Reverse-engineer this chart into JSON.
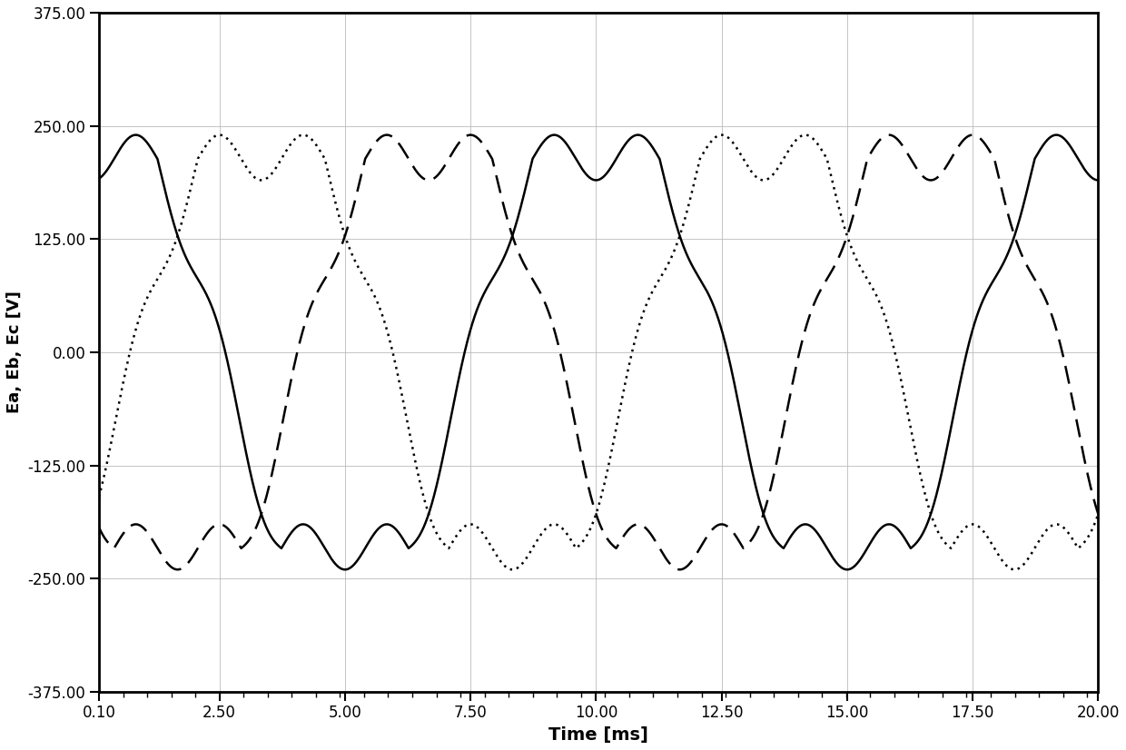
{
  "title": "",
  "xlabel": "Time [ms]",
  "ylabel": "Ea, Eb, Ec [V]",
  "xlim": [
    0.1,
    20.0
  ],
  "ylim": [
    -375.0,
    375.0
  ],
  "xticks": [
    0.1,
    2.5,
    5.0,
    7.5,
    10.0,
    12.5,
    15.0,
    17.5,
    20.0
  ],
  "yticks": [
    -375.0,
    -250.0,
    -125.0,
    0.0,
    125.0,
    250.0,
    375.0
  ],
  "grid_color": "#bbbbbb",
  "line_color": "#000000",
  "background_color": "#ffffff",
  "Vpeak": 215.0,
  "Vripple": 25.0,
  "f_fund": 100.0,
  "f_ripple": 600.0,
  "sample_rate": 20000
}
